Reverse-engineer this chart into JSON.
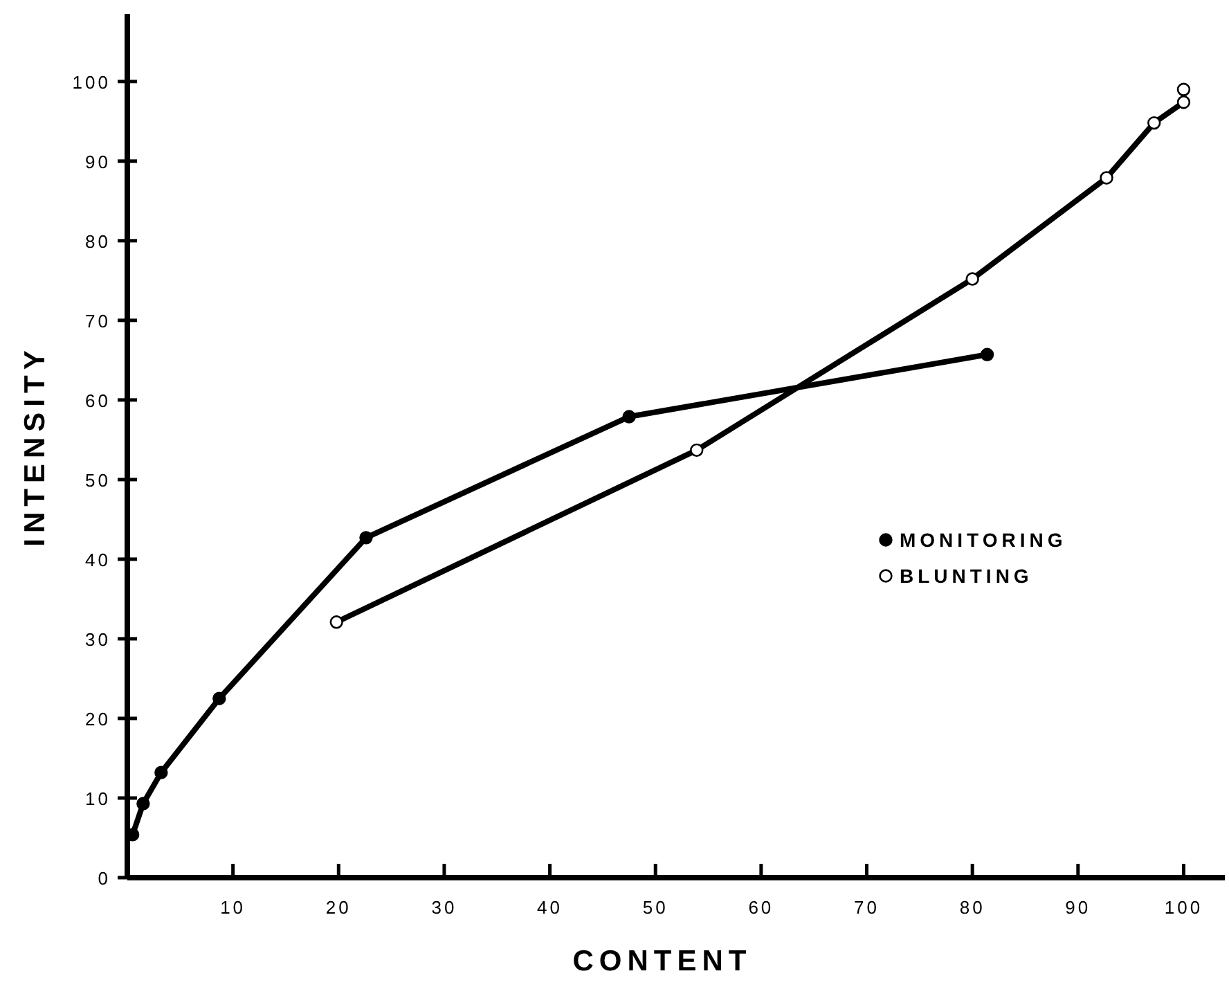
{
  "chart_data": {
    "type": "line",
    "xlabel": "CONTENT",
    "ylabel": "INTENSITY",
    "xlim": [
      0,
      103.9
    ],
    "ylim": [
      0,
      108.5
    ],
    "xticks": [
      10,
      20,
      30,
      40,
      50,
      60,
      70,
      80,
      90,
      100
    ],
    "yticks": [
      0,
      10,
      20,
      30,
      40,
      50,
      60,
      70,
      80,
      90,
      100
    ],
    "grid": false,
    "legend": "right",
    "marker": "circle",
    "line_style": "solid",
    "series": [
      {
        "name": "MONITORING",
        "color": "#000000",
        "x": [
          0.5,
          1.5,
          3.2,
          8.7,
          22.6,
          47.5,
          81.4
        ],
        "values": [
          5.4,
          9.3,
          13.2,
          22.5,
          42.7,
          57.9,
          65.7
        ]
      },
      {
        "name": "BLUNTING",
        "color": "#ffffff",
        "x": [
          19.8,
          53.9,
          80,
          92.7,
          97.2,
          100,
          100
        ],
        "values": [
          32.1,
          53.7,
          75.2,
          87.9,
          94.8,
          97.4,
          99
        ]
      }
    ]
  }
}
